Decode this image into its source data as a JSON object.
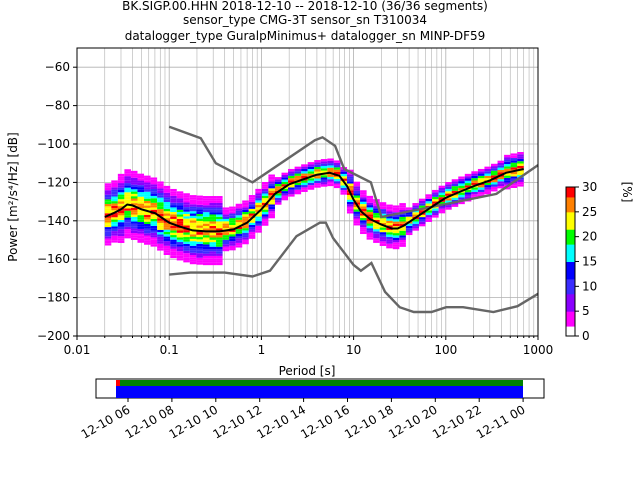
{
  "title": {
    "line1": "BK.SIGP.00.HHN   2018-12-10 -- 2018-12-10  (36/36 segments)",
    "line2": "sensor_type CMG-3T sensor_sn T310034",
    "line3": "datalogger_type GuralpMinimus+ datalogger_sn MINP-DF59"
  },
  "chart_data": {
    "type": "heatmap",
    "xlabel": "Period [s]",
    "ylabel": "Power [m²/s⁴/Hz] [dB]",
    "xscale": "log",
    "xlim": [
      0.01,
      1000
    ],
    "ylim": [
      -200,
      -50
    ],
    "grid": true,
    "xticks": [
      {
        "value": 0.01,
        "label": "0.01"
      },
      {
        "value": 0.1,
        "label": "0.1"
      },
      {
        "value": 1,
        "label": "1"
      },
      {
        "value": 10,
        "label": "10"
      },
      {
        "value": 100,
        "label": "100"
      },
      {
        "value": 1000,
        "label": "1000"
      }
    ],
    "yticks": [
      {
        "value": -60,
        "label": "−60"
      },
      {
        "value": -80,
        "label": "−80"
      },
      {
        "value": -100,
        "label": "−100"
      },
      {
        "value": -120,
        "label": "−120"
      },
      {
        "value": -140,
        "label": "−140"
      },
      {
        "value": -160,
        "label": "−160"
      },
      {
        "value": -180,
        "label": "−180"
      },
      {
        "value": -200,
        "label": "−200"
      }
    ],
    "series": [
      {
        "role": "high noise model",
        "color": "#666666",
        "points": [
          [
            0.1,
            -91
          ],
          [
            0.22,
            -97
          ],
          [
            0.32,
            -110
          ],
          [
            0.8,
            -120
          ],
          [
            3.8,
            -98
          ],
          [
            4.6,
            -96.5
          ],
          [
            6.3,
            -101
          ],
          [
            7.9,
            -113
          ],
          [
            15.4,
            -120
          ],
          [
            20,
            -138
          ],
          [
            354,
            -126
          ],
          [
            1000,
            -111
          ]
        ]
      },
      {
        "role": "low noise model",
        "color": "#666666",
        "points": [
          [
            0.1,
            -168
          ],
          [
            0.17,
            -167
          ],
          [
            0.4,
            -167
          ],
          [
            0.8,
            -169
          ],
          [
            1.24,
            -166
          ],
          [
            2.4,
            -148
          ],
          [
            4.3,
            -141
          ],
          [
            5,
            -141
          ],
          [
            6,
            -149
          ],
          [
            10,
            -163
          ],
          [
            12,
            -166
          ],
          [
            15.6,
            -162
          ],
          [
            21.9,
            -177
          ],
          [
            31.6,
            -185
          ],
          [
            45,
            -187.5
          ],
          [
            70,
            -187.5
          ],
          [
            101,
            -185
          ],
          [
            154,
            -185
          ],
          [
            328,
            -187.5
          ],
          [
            600,
            -184.5
          ],
          [
            1000,
            -178
          ]
        ]
      },
      {
        "role": "mean",
        "color": "#000000",
        "points": [
          [
            0.02,
            -138
          ],
          [
            0.025,
            -136
          ],
          [
            0.03,
            -134
          ],
          [
            0.035,
            -131.5
          ],
          [
            0.04,
            -132
          ],
          [
            0.05,
            -134
          ],
          [
            0.07,
            -136
          ],
          [
            0.1,
            -141
          ],
          [
            0.13,
            -143
          ],
          [
            0.18,
            -145
          ],
          [
            0.25,
            -145.5
          ],
          [
            0.35,
            -145.5
          ],
          [
            0.5,
            -144.5
          ],
          [
            0.7,
            -141
          ],
          [
            1,
            -134
          ],
          [
            1.4,
            -126
          ],
          [
            2,
            -121
          ],
          [
            3,
            -118
          ],
          [
            4,
            -116
          ],
          [
            5.5,
            -115
          ],
          [
            7,
            -116.5
          ],
          [
            8.5,
            -122
          ],
          [
            10,
            -129
          ],
          [
            12,
            -135
          ],
          [
            15,
            -139
          ],
          [
            20,
            -142
          ],
          [
            26,
            -144
          ],
          [
            30,
            -144
          ],
          [
            35,
            -142.5
          ],
          [
            45,
            -139
          ],
          [
            60,
            -135
          ],
          [
            80,
            -131
          ],
          [
            100,
            -128
          ],
          [
            140,
            -125
          ],
          [
            200,
            -122
          ],
          [
            300,
            -119
          ],
          [
            450,
            -115
          ],
          [
            700,
            -113
          ]
        ]
      }
    ],
    "colorbar": {
      "label": "[%]",
      "range": [
        0,
        30
      ],
      "ticks": [
        {
          "value": 0,
          "label": "0"
        },
        {
          "value": 5,
          "label": "5"
        },
        {
          "value": 10,
          "label": "10"
        },
        {
          "value": 15,
          "label": "15"
        },
        {
          "value": 20,
          "label": "20"
        },
        {
          "value": 25,
          "label": "25"
        },
        {
          "value": 30,
          "label": "30"
        }
      ],
      "colors": [
        "#ffffff",
        "#ff00ff",
        "#8a00ff",
        "#3a2cff",
        "#0000ff",
        "#00ffff",
        "#00ff00",
        "#ffff00",
        "#ff8000",
        "#ff0000"
      ]
    },
    "coverage": {
      "ticks": [
        "12-10 06",
        "12-10 08",
        "12-10 10",
        "12-10 12",
        "12-10 14",
        "12-10 16",
        "12-10 18",
        "12-10 20",
        "12-10 22",
        "12-11 00"
      ],
      "data_color": "#0000ff",
      "used_color": "#008000",
      "gap_color": "#ff0000"
    }
  }
}
